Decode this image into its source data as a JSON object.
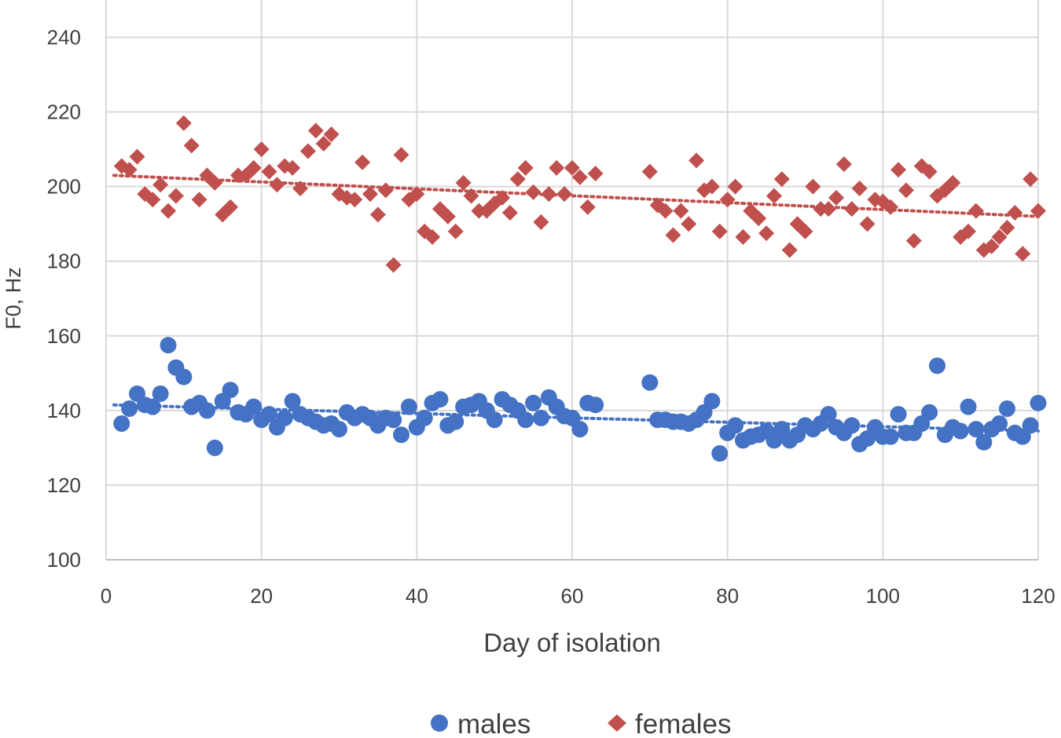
{
  "chart_data": {
    "type": "scatter",
    "title": "",
    "xlabel": "Day of isolation",
    "ylabel": "F0, Hz",
    "xlim": [
      0,
      120
    ],
    "ylim": [
      100,
      250
    ],
    "xticks": [
      0,
      20,
      40,
      60,
      80,
      100,
      120
    ],
    "yticks": [
      100,
      120,
      140,
      160,
      180,
      200,
      220,
      240
    ],
    "grid": true,
    "legend_position": "bottom",
    "series": [
      {
        "name": "males",
        "marker": "circle",
        "color": "#4472c4",
        "trendline": [
          [
            1,
            141.5
          ],
          [
            120,
            134.5
          ]
        ],
        "points": [
          [
            2,
            136.5
          ],
          [
            3,
            140.5
          ],
          [
            4,
            144.5
          ],
          [
            5,
            141.5
          ],
          [
            6,
            141
          ],
          [
            7,
            144.5
          ],
          [
            8,
            157.5
          ],
          [
            9,
            151.5
          ],
          [
            10,
            149
          ],
          [
            11,
            141
          ],
          [
            12,
            142
          ],
          [
            13,
            140
          ],
          [
            14,
            130
          ],
          [
            15,
            142.5
          ],
          [
            16,
            145.5
          ],
          [
            17,
            139.5
          ],
          [
            18,
            139
          ],
          [
            19,
            141
          ],
          [
            20,
            137.5
          ],
          [
            21,
            139
          ],
          [
            22,
            135.5
          ],
          [
            23,
            138
          ],
          [
            24,
            142.5
          ],
          [
            25,
            139
          ],
          [
            26,
            138
          ],
          [
            27,
            137
          ],
          [
            28,
            136
          ],
          [
            29,
            136.5
          ],
          [
            30,
            135
          ],
          [
            31,
            139.5
          ],
          [
            32,
            138
          ],
          [
            33,
            139
          ],
          [
            34,
            138
          ],
          [
            35,
            136
          ],
          [
            36,
            138
          ],
          [
            37,
            137.5
          ],
          [
            38,
            133.5
          ],
          [
            39,
            141
          ],
          [
            40,
            135.5
          ],
          [
            41,
            138
          ],
          [
            42,
            142
          ],
          [
            43,
            143
          ],
          [
            44,
            136
          ],
          [
            45,
            137
          ],
          [
            46,
            141
          ],
          [
            47,
            141.5
          ],
          [
            48,
            142.5
          ],
          [
            49,
            140
          ],
          [
            50,
            137.5
          ],
          [
            51,
            143
          ],
          [
            52,
            141.5
          ],
          [
            53,
            140
          ],
          [
            54,
            137.5
          ],
          [
            55,
            142
          ],
          [
            56,
            138
          ],
          [
            57,
            143.5
          ],
          [
            58,
            141
          ],
          [
            59,
            138.5
          ],
          [
            60,
            138
          ],
          [
            61,
            135
          ],
          [
            62,
            142
          ],
          [
            63,
            141.5
          ],
          [
            70,
            147.5
          ],
          [
            71,
            137.5
          ],
          [
            72,
            137.5
          ],
          [
            73,
            137
          ],
          [
            74,
            137
          ],
          [
            75,
            136.5
          ],
          [
            76,
            137.5
          ],
          [
            77,
            139.5
          ],
          [
            78,
            142.5
          ],
          [
            79,
            128.5
          ],
          [
            80,
            134
          ],
          [
            81,
            136
          ],
          [
            82,
            132
          ],
          [
            83,
            133
          ],
          [
            84,
            133.5
          ],
          [
            85,
            134.5
          ],
          [
            86,
            132
          ],
          [
            87,
            135
          ],
          [
            88,
            132
          ],
          [
            89,
            133.5
          ],
          [
            90,
            136
          ],
          [
            91,
            135
          ],
          [
            92,
            136.5
          ],
          [
            93,
            139
          ],
          [
            94,
            135.5
          ],
          [
            95,
            134
          ],
          [
            96,
            136
          ],
          [
            97,
            131
          ],
          [
            98,
            132.5
          ],
          [
            99,
            135.5
          ],
          [
            100,
            133
          ],
          [
            101,
            133
          ],
          [
            102,
            139
          ],
          [
            103,
            134
          ],
          [
            104,
            134
          ],
          [
            105,
            136.5
          ],
          [
            106,
            139.5
          ],
          [
            107,
            152
          ],
          [
            108,
            133.5
          ],
          [
            109,
            135.5
          ],
          [
            110,
            134.5
          ],
          [
            111,
            141
          ],
          [
            112,
            135
          ],
          [
            113,
            131.5
          ],
          [
            114,
            135
          ],
          [
            115,
            136.5
          ],
          [
            116,
            140.5
          ],
          [
            117,
            134
          ],
          [
            118,
            133
          ],
          [
            119,
            136
          ],
          [
            120,
            142
          ]
        ]
      },
      {
        "name": "females",
        "marker": "diamond",
        "color": "#c0504d",
        "trendline": [
          [
            1,
            203
          ],
          [
            120,
            192
          ]
        ],
        "points": [
          [
            2,
            205.5
          ],
          [
            3,
            204.5
          ],
          [
            4,
            208
          ],
          [
            5,
            198
          ],
          [
            6,
            196.5
          ],
          [
            7,
            200.5
          ],
          [
            8,
            193.5
          ],
          [
            9,
            197.5
          ],
          [
            10,
            217
          ],
          [
            11,
            211
          ],
          [
            12,
            196.5
          ],
          [
            13,
            203
          ],
          [
            14,
            201
          ],
          [
            15,
            192.5
          ],
          [
            16,
            194.5
          ],
          [
            17,
            203
          ],
          [
            18,
            203
          ],
          [
            19,
            205
          ],
          [
            20,
            210
          ],
          [
            21,
            204
          ],
          [
            22,
            200.5
          ],
          [
            23,
            205.5
          ],
          [
            24,
            205
          ],
          [
            25,
            199.5
          ],
          [
            26,
            209.5
          ],
          [
            27,
            215
          ],
          [
            28,
            211.5
          ],
          [
            29,
            214
          ],
          [
            30,
            198
          ],
          [
            31,
            197
          ],
          [
            32,
            196.5
          ],
          [
            33,
            206.5
          ],
          [
            34,
            198
          ],
          [
            35,
            192.5
          ],
          [
            36,
            199
          ],
          [
            37,
            179
          ],
          [
            38,
            208.5
          ],
          [
            39,
            196.5
          ],
          [
            40,
            198
          ],
          [
            41,
            188
          ],
          [
            42,
            186.5
          ],
          [
            43,
            194
          ],
          [
            44,
            192
          ],
          [
            45,
            188
          ],
          [
            46,
            201
          ],
          [
            47,
            197.5
          ],
          [
            48,
            193.5
          ],
          [
            49,
            193.5
          ],
          [
            50,
            195.5
          ],
          [
            51,
            197
          ],
          [
            52,
            193
          ],
          [
            53,
            202
          ],
          [
            54,
            205
          ],
          [
            55,
            198.5
          ],
          [
            56,
            190.5
          ],
          [
            57,
            198
          ],
          [
            58,
            205
          ],
          [
            59,
            198
          ],
          [
            60,
            205
          ],
          [
            61,
            202.5
          ],
          [
            62,
            194.5
          ],
          [
            63,
            203.5
          ],
          [
            70,
            204
          ],
          [
            71,
            195
          ],
          [
            72,
            193.5
          ],
          [
            73,
            187
          ],
          [
            74,
            193.5
          ],
          [
            75,
            190
          ],
          [
            76,
            207
          ],
          [
            77,
            199
          ],
          [
            78,
            200
          ],
          [
            79,
            188
          ],
          [
            80,
            196.5
          ],
          [
            81,
            200
          ],
          [
            82,
            186.5
          ],
          [
            83,
            193.5
          ],
          [
            84,
            191.5
          ],
          [
            85,
            187.5
          ],
          [
            86,
            197.5
          ],
          [
            87,
            202
          ],
          [
            88,
            183
          ],
          [
            89,
            190
          ],
          [
            90,
            188
          ],
          [
            91,
            200
          ],
          [
            92,
            194
          ],
          [
            93,
            194
          ],
          [
            94,
            197
          ],
          [
            95,
            206
          ],
          [
            96,
            194
          ],
          [
            97,
            199.5
          ],
          [
            98,
            190
          ],
          [
            99,
            196.5
          ],
          [
            100,
            196
          ],
          [
            101,
            194.5
          ],
          [
            102,
            204.5
          ],
          [
            103,
            199
          ],
          [
            104,
            185.5
          ],
          [
            105,
            205.5
          ],
          [
            106,
            204
          ],
          [
            107,
            197.5
          ],
          [
            108,
            199
          ],
          [
            109,
            201
          ],
          [
            110,
            186.5
          ],
          [
            111,
            188
          ],
          [
            112,
            193.5
          ],
          [
            113,
            183
          ],
          [
            114,
            184
          ],
          [
            115,
            186.5
          ],
          [
            116,
            189
          ],
          [
            117,
            193
          ],
          [
            118,
            182
          ],
          [
            119,
            202
          ],
          [
            120,
            193.5
          ]
        ]
      }
    ]
  }
}
